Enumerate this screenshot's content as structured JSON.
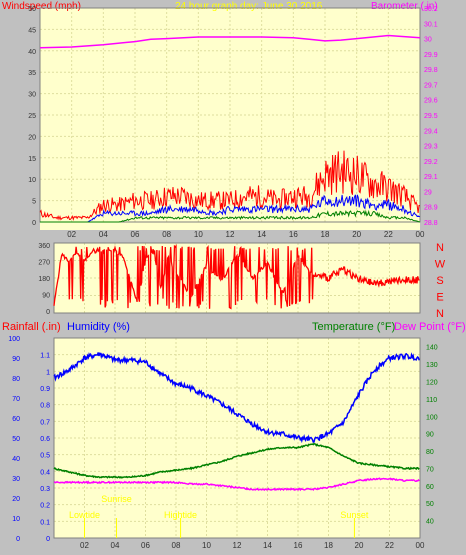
{
  "colors": {
    "panel_bg": "#c0c0c0",
    "plot_bg": "#ffffcc",
    "grid": "#dede9e",
    "tick": "#333333",
    "wind": "#ff0000",
    "wind_avg": "#0000ff",
    "wind_low": "#008000",
    "barometer": "#ff00ff",
    "rain_axis": "#ff0000",
    "humidity": "#0000ff",
    "temperature": "#008000",
    "dewpoint": "#ff00ff",
    "sun_annotations": "#ffff00"
  },
  "chart_data": [
    {
      "type": "line",
      "title": "24 hour graph day:  June 30 2016",
      "ylabel_left": "Windspeed (mph)",
      "ylabel_right": "Barometer (.in)",
      "x_ticks": [
        "02",
        "04",
        "06",
        "08",
        "10",
        "12",
        "14",
        "16",
        "18",
        "20",
        "22",
        "00"
      ],
      "x_range": [
        0,
        24
      ],
      "ylim_left": [
        0,
        50
      ],
      "y_ticks_left": [
        "0",
        "5",
        "10",
        "15",
        "20",
        "25",
        "30",
        "35",
        "40",
        "45",
        "50"
      ],
      "ylim_right": [
        28.8,
        30.2
      ],
      "y_ticks_right": [
        "28.8",
        "28.9",
        "29",
        "29.1",
        "29.2",
        "29.3",
        "29.4",
        "29.5",
        "29.6",
        "29.7",
        "29.8",
        "29.9",
        "30",
        "30.1",
        "30.2"
      ],
      "grid": true,
      "series": [
        {
          "color": "barometer",
          "axis": "right",
          "x": [
            0,
            2,
            4,
            6,
            7,
            8,
            10,
            12,
            14,
            16,
            17,
            18,
            19,
            20,
            22,
            24
          ],
          "y": [
            29.94,
            29.945,
            29.96,
            29.98,
            29.995,
            30.0,
            30.01,
            30.01,
            30.01,
            30.005,
            29.995,
            29.985,
            29.99,
            30.0,
            30.02,
            30.005
          ]
        },
        {
          "color": "wind",
          "axis": "left",
          "kind": "gust",
          "x": [
            0,
            1,
            2,
            3,
            4,
            5,
            6,
            7,
            8,
            9,
            10,
            11,
            12,
            13,
            14,
            15,
            16,
            17,
            18,
            19,
            20,
            21,
            22,
            23,
            24
          ],
          "y": [
            2,
            1,
            1,
            1,
            4,
            4,
            5,
            5,
            6,
            6,
            5,
            5,
            5,
            6,
            6,
            5,
            6,
            6,
            11,
            12,
            11,
            9,
            8,
            6,
            3
          ]
        },
        {
          "color": "wind_avg",
          "axis": "left",
          "kind": "average",
          "x": [
            0,
            1,
            2,
            3,
            4,
            5,
            6,
            7,
            8,
            9,
            10,
            11,
            12,
            13,
            14,
            15,
            16,
            17,
            18,
            19,
            20,
            21,
            22,
            23,
            24
          ],
          "y": [
            0,
            0,
            0,
            0,
            2,
            2,
            2,
            2,
            3,
            3,
            3,
            2,
            3,
            3,
            3,
            3,
            3,
            3,
            5,
            5,
            5,
            4,
            4,
            3,
            1
          ]
        },
        {
          "color": "wind_low",
          "axis": "left",
          "kind": "low",
          "x": [
            0,
            1,
            2,
            3,
            4,
            5,
            6,
            7,
            8,
            9,
            10,
            11,
            12,
            13,
            14,
            15,
            16,
            17,
            18,
            19,
            20,
            21,
            22,
            23,
            24
          ],
          "y": [
            0,
            0,
            0,
            0,
            0,
            0,
            1,
            1,
            1,
            1,
            1,
            1,
            1,
            1,
            1,
            1,
            1,
            1,
            2,
            2,
            2,
            2,
            1,
            1,
            0
          ]
        }
      ]
    },
    {
      "type": "line",
      "ylabel_left": "",
      "ylabel_right": "",
      "x_range": [
        0,
        24
      ],
      "ylim_left": [
        0,
        360
      ],
      "y_ticks_left": [
        "0",
        "90",
        "180",
        "270",
        "360"
      ],
      "right_labels": [
        "N",
        "W",
        "S",
        "E",
        "N"
      ],
      "grid": true,
      "series": [
        {
          "color": "wind",
          "kind": "direction",
          "x": [
            0,
            0.5,
            1,
            1.5,
            2,
            2.5,
            3,
            3.5,
            4,
            4.5,
            5,
            5.5,
            6,
            6.5,
            7,
            7.5,
            8,
            9,
            10,
            11,
            12,
            13,
            14,
            15,
            16,
            17,
            18,
            19,
            20,
            21,
            22,
            23,
            24
          ],
          "y": [
            30,
            310,
            270,
            320,
            270,
            330,
            320,
            330,
            330,
            300,
            170,
            40,
            280,
            330,
            120,
            300,
            200,
            80,
            250,
            160,
            310,
            180,
            260,
            100,
            300,
            200,
            180,
            230,
            170,
            150,
            160,
            170,
            170
          ]
        }
      ]
    },
    {
      "type": "line",
      "ylabel_left": "Rainfall (.in)",
      "ylabel_left2": "Humidity (%)",
      "ylabel_right": "Temperature (°F)",
      "ylabel_right2": "Dew Point (°F)",
      "x_ticks": [
        "02",
        "04",
        "06",
        "08",
        "10",
        "12",
        "14",
        "16",
        "18",
        "20",
        "22",
        "00"
      ],
      "x_range": [
        0,
        24
      ],
      "ylim_rain": [
        0,
        1.2
      ],
      "y_ticks_rain": [
        "0",
        "0.1",
        "0.2",
        "0.3",
        "0.4",
        "0.5",
        "0.6",
        "0.7",
        "0.8",
        "0.9",
        "1",
        "1.1"
      ],
      "ylim_humidity": [
        0,
        100
      ],
      "y_ticks_humidity": [
        "0",
        "10",
        "20",
        "30",
        "40",
        "50",
        "60",
        "70",
        "80",
        "90",
        "100"
      ],
      "ylim_temp": [
        30,
        145
      ],
      "y_ticks_temp": [
        "40",
        "50",
        "60",
        "70",
        "80",
        "90",
        "100",
        "110",
        "120",
        "130",
        "140"
      ],
      "grid": true,
      "annotations": [
        {
          "text": "Sunrise",
          "x": 4.1,
          "row": 1
        },
        {
          "text": "Lowtide",
          "x": 2.0,
          "row": 2
        },
        {
          "text": "Hightide",
          "x": 8.3,
          "row": 2
        },
        {
          "text": "Sunset",
          "x": 19.7,
          "row": 2
        }
      ],
      "series": [
        {
          "color": "humidity",
          "axis": "humidity",
          "x": [
            0,
            1,
            2,
            3,
            4,
            5,
            6,
            7,
            8,
            9,
            10,
            11,
            12,
            13,
            14,
            15,
            16,
            17,
            18,
            19,
            20,
            21,
            22,
            23,
            24
          ],
          "y": [
            80,
            84,
            90,
            92,
            89,
            89,
            88,
            82,
            77,
            75,
            71,
            67,
            62,
            57,
            53,
            52,
            50,
            49,
            52,
            58,
            72,
            84,
            90,
            91,
            90
          ]
        },
        {
          "color": "temperature",
          "axis": "temp",
          "x": [
            0,
            1,
            2,
            3,
            4,
            5,
            6,
            7,
            8,
            9,
            10,
            11,
            12,
            13,
            14,
            15,
            16,
            17,
            18,
            19,
            20,
            21,
            22,
            23,
            24
          ],
          "y": [
            70,
            68,
            66,
            65,
            65,
            65,
            66,
            68,
            69,
            70,
            72,
            74,
            77,
            79,
            81,
            82,
            82,
            84,
            82,
            77,
            73,
            72,
            71,
            70,
            70
          ]
        },
        {
          "color": "dewpoint",
          "axis": "temp",
          "x": [
            0,
            1,
            2,
            3,
            4,
            5,
            6,
            7,
            8,
            9,
            10,
            11,
            12,
            13,
            14,
            15,
            16,
            17,
            18,
            19,
            20,
            21,
            22,
            23,
            24
          ],
          "y": [
            62,
            62,
            62,
            62,
            62,
            62,
            62,
            62,
            62,
            61,
            61,
            60,
            59,
            58,
            58,
            58,
            58,
            58,
            59,
            61,
            63,
            64,
            64,
            63,
            63
          ]
        }
      ]
    }
  ]
}
